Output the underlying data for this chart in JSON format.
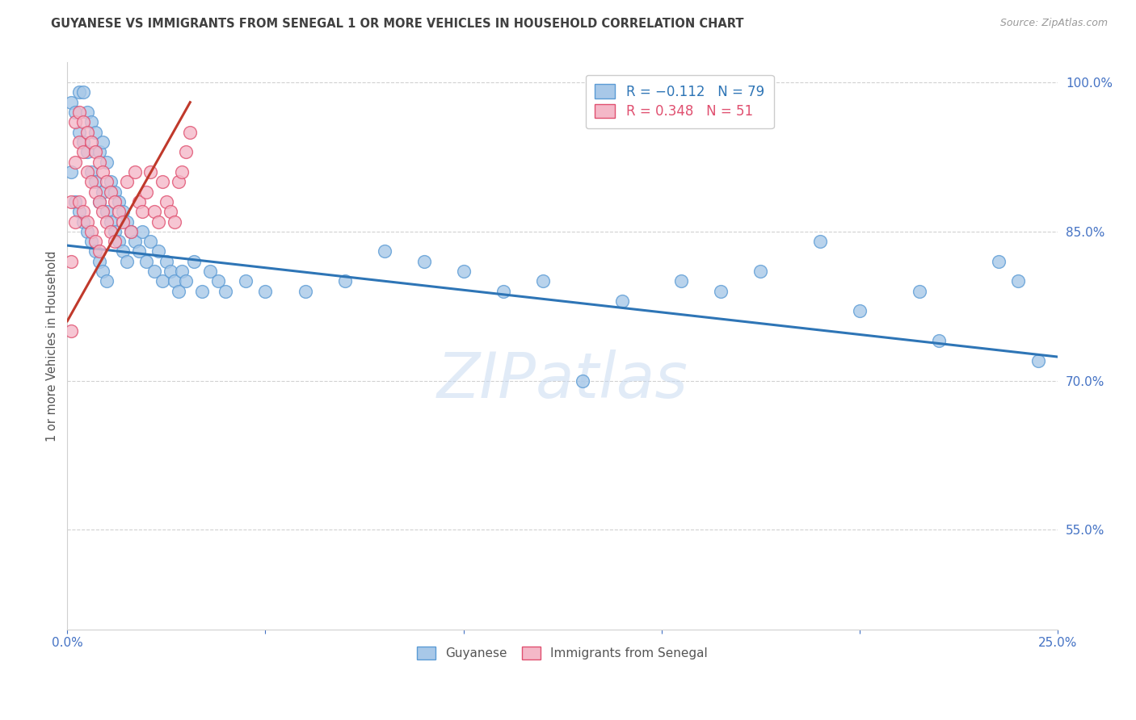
{
  "title": "GUYANESE VS IMMIGRANTS FROM SENEGAL 1 OR MORE VEHICLES IN HOUSEHOLD CORRELATION CHART",
  "source": "Source: ZipAtlas.com",
  "ylabel": "1 or more Vehicles in Household",
  "x_min": 0.0,
  "x_max": 0.25,
  "y_min": 0.45,
  "y_max": 1.02,
  "x_ticks": [
    0.0,
    0.05,
    0.1,
    0.15,
    0.2,
    0.25
  ],
  "x_tick_labels": [
    "0.0%",
    "",
    "",
    "",
    "",
    "25.0%"
  ],
  "y_ticks": [
    0.55,
    0.7,
    0.85,
    1.0
  ],
  "y_tick_labels": [
    "55.0%",
    "70.0%",
    "85.0%",
    "100.0%"
  ],
  "series_blue": {
    "color": "#a8c8e8",
    "edge_color": "#5b9bd5",
    "line_color": "#2e75b6",
    "x": [
      0.001,
      0.001,
      0.002,
      0.002,
      0.003,
      0.003,
      0.003,
      0.004,
      0.004,
      0.004,
      0.005,
      0.005,
      0.005,
      0.006,
      0.006,
      0.006,
      0.007,
      0.007,
      0.007,
      0.008,
      0.008,
      0.008,
      0.009,
      0.009,
      0.009,
      0.01,
      0.01,
      0.01,
      0.011,
      0.011,
      0.012,
      0.012,
      0.013,
      0.013,
      0.014,
      0.014,
      0.015,
      0.015,
      0.016,
      0.017,
      0.018,
      0.019,
      0.02,
      0.021,
      0.022,
      0.023,
      0.024,
      0.025,
      0.026,
      0.027,
      0.028,
      0.029,
      0.03,
      0.032,
      0.034,
      0.036,
      0.038,
      0.04,
      0.045,
      0.05,
      0.06,
      0.07,
      0.08,
      0.09,
      0.1,
      0.11,
      0.12,
      0.13,
      0.14,
      0.155,
      0.165,
      0.175,
      0.19,
      0.2,
      0.215,
      0.22,
      0.235,
      0.24,
      0.245
    ],
    "y": [
      0.98,
      0.91,
      0.97,
      0.88,
      0.99,
      0.95,
      0.87,
      0.99,
      0.94,
      0.86,
      0.97,
      0.93,
      0.85,
      0.96,
      0.91,
      0.84,
      0.95,
      0.9,
      0.83,
      0.93,
      0.88,
      0.82,
      0.94,
      0.89,
      0.81,
      0.92,
      0.87,
      0.8,
      0.9,
      0.86,
      0.89,
      0.85,
      0.88,
      0.84,
      0.87,
      0.83,
      0.86,
      0.82,
      0.85,
      0.84,
      0.83,
      0.85,
      0.82,
      0.84,
      0.81,
      0.83,
      0.8,
      0.82,
      0.81,
      0.8,
      0.79,
      0.81,
      0.8,
      0.82,
      0.79,
      0.81,
      0.8,
      0.79,
      0.8,
      0.79,
      0.79,
      0.8,
      0.83,
      0.82,
      0.81,
      0.79,
      0.8,
      0.7,
      0.78,
      0.8,
      0.79,
      0.81,
      0.84,
      0.77,
      0.79,
      0.74,
      0.82,
      0.8,
      0.72
    ]
  },
  "series_pink": {
    "color": "#f4b8c8",
    "edge_color": "#e05070",
    "line_color": "#c0392b",
    "x": [
      0.001,
      0.001,
      0.001,
      0.002,
      0.002,
      0.002,
      0.003,
      0.003,
      0.003,
      0.004,
      0.004,
      0.004,
      0.005,
      0.005,
      0.005,
      0.006,
      0.006,
      0.006,
      0.007,
      0.007,
      0.007,
      0.008,
      0.008,
      0.008,
      0.009,
      0.009,
      0.01,
      0.01,
      0.011,
      0.011,
      0.012,
      0.012,
      0.013,
      0.014,
      0.015,
      0.016,
      0.017,
      0.018,
      0.019,
      0.02,
      0.021,
      0.022,
      0.023,
      0.024,
      0.025,
      0.026,
      0.027,
      0.028,
      0.029,
      0.03,
      0.031
    ],
    "y": [
      0.88,
      0.82,
      0.75,
      0.96,
      0.92,
      0.86,
      0.97,
      0.94,
      0.88,
      0.96,
      0.93,
      0.87,
      0.95,
      0.91,
      0.86,
      0.94,
      0.9,
      0.85,
      0.93,
      0.89,
      0.84,
      0.92,
      0.88,
      0.83,
      0.91,
      0.87,
      0.9,
      0.86,
      0.89,
      0.85,
      0.88,
      0.84,
      0.87,
      0.86,
      0.9,
      0.85,
      0.91,
      0.88,
      0.87,
      0.89,
      0.91,
      0.87,
      0.86,
      0.9,
      0.88,
      0.87,
      0.86,
      0.9,
      0.91,
      0.93,
      0.95
    ]
  },
  "blue_line_y0": 0.836,
  "blue_line_y1": 0.724,
  "pink_line_y0": 0.76,
  "pink_line_y1": 0.98,
  "watermark_text": "ZIPatlas",
  "background_color": "#ffffff",
  "grid_color": "#cccccc",
  "title_color": "#404040",
  "axis_label_color": "#4472c4",
  "source_color": "#999999"
}
